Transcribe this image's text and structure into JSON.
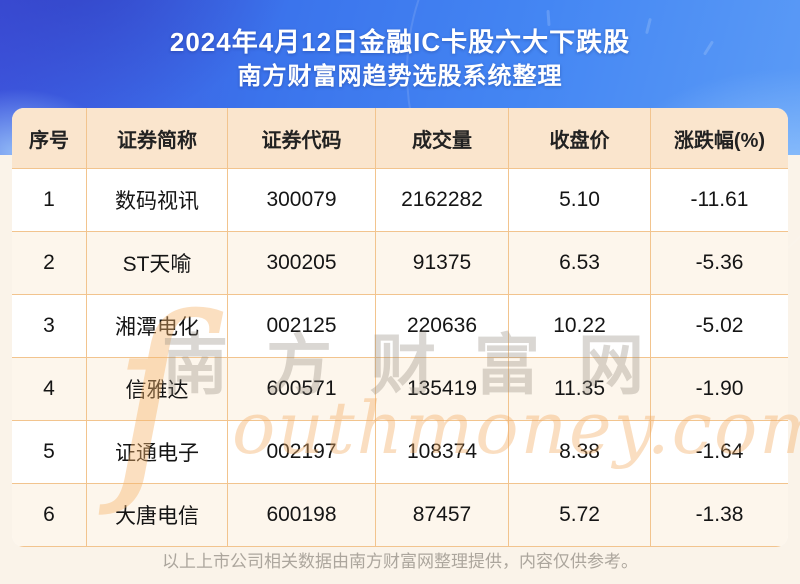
{
  "header": {
    "title_line1": "2024年4月12日金融IC卡股六大下跌股",
    "title_line2": "南方财富网趋势选股系统整理"
  },
  "chart_data": {
    "type": "table",
    "title": "2024年4月12日金融IC卡股六大下跌股",
    "subtitle": "南方财富网趋势选股系统整理",
    "columns": [
      "序号",
      "证券简称",
      "证券代码",
      "成交量",
      "收盘价",
      "涨跌幅(%)"
    ],
    "rows": [
      [
        "1",
        "数码视讯",
        "300079",
        "2162282",
        "5.10",
        "-11.61"
      ],
      [
        "2",
        "ST天喻",
        "300205",
        "91375",
        "6.53",
        "-5.36"
      ],
      [
        "3",
        "湘潭电化",
        "002125",
        "220636",
        "10.22",
        "-5.02"
      ],
      [
        "4",
        "信雅达",
        "600571",
        "135419",
        "11.35",
        "-1.90"
      ],
      [
        "5",
        "证通电子",
        "002197",
        "108374",
        "8.38",
        "-1.64"
      ],
      [
        "6",
        "大唐电信",
        "600198",
        "87457",
        "5.72",
        "-1.38"
      ]
    ],
    "legend_position": "none",
    "grid": true
  },
  "watermark": {
    "swoosh_glyph": "ſ",
    "cn_text": "南方财富网",
    "en_text": "outhmoney.com"
  },
  "footer": {
    "note": "以上上市公司相关数据由南方财富网整理提供，内容仅供参考。"
  },
  "colors": {
    "hero_blue_start": "#3D53DC",
    "hero_blue_mid": "#4486F3",
    "hero_blue_end": "#5B9BF6",
    "table_header_bg": "#FAE5CD",
    "row_stripe_bg": "#FDF6EC",
    "grid_line": "#F2C48E",
    "page_bg": "#FAF3E9",
    "title_text": "#FFFFFF",
    "cell_text": "#151515",
    "footer_text": "#ACA69D",
    "watermark_orange": "#F3AC64",
    "watermark_gray": "#948A7E"
  }
}
